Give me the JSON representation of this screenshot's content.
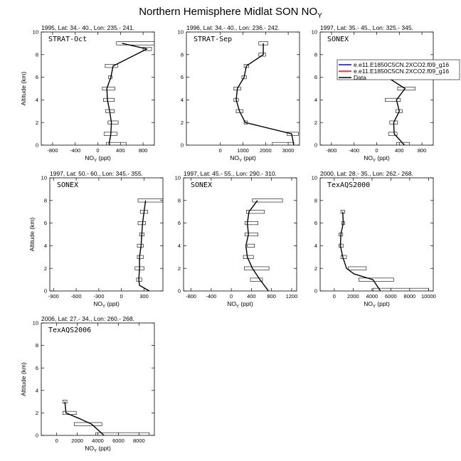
{
  "figure": {
    "title": "Northern Hemisphere Midlat SON NO",
    "title_sub": "Y"
  },
  "legend": [
    {
      "label": "e.e11.E1850C5CN.2XCO2.f09_g16",
      "color": "#0000ff"
    },
    {
      "label": "e.e11.E1850C5CN.2XCO2.f09_g16",
      "color": "#ff0000"
    },
    {
      "label": "Data",
      "color": "#000000"
    }
  ],
  "chart_data": [
    {
      "type": "line",
      "title": "1995, Lat: 34.- 40., Lon: 235.- 241.",
      "tag": "STRAT-Oct",
      "xlabel": "NO",
      "xlabel_sub": "Y",
      "xlabel_unit": " (ppt)",
      "ylabel": "Altitude (km)",
      "xlim": [
        -1000,
        1000
      ],
      "ylim": [
        0,
        10
      ],
      "xticks": [
        -800,
        -400,
        0,
        400,
        800
      ],
      "yticks": [
        0,
        2,
        4,
        6,
        8,
        10
      ],
      "series": [
        {
          "x": [
            430,
            870,
            270,
            230,
            160,
            170,
            210,
            240,
            230,
            200,
            210
          ],
          "y": [
            9,
            8.5,
            7,
            6,
            5,
            4,
            3,
            2,
            1,
            0.1,
            0
          ]
        }
      ],
      "bars": [
        [
          330,
          1000,
          9
        ],
        [
          800,
          950,
          8.5
        ],
        [
          130,
          350,
          7
        ],
        [
          190,
          250,
          6
        ],
        [
          80,
          300,
          5
        ],
        [
          100,
          290,
          4
        ],
        [
          140,
          290,
          3
        ],
        [
          180,
          360,
          2
        ],
        [
          110,
          340,
          1
        ],
        [
          150,
          500,
          0.1
        ]
      ]
    },
    {
      "type": "line",
      "title": "1996, Lat: 34.- 40., Lon: 236.- 242.",
      "tag": "STRAT-Sep",
      "xlabel": "NO",
      "xlabel_sub": "Y",
      "xlabel_unit": " (ppt)",
      "ylabel": "",
      "xlim": [
        -1500,
        3500
      ],
      "ylim": [
        0,
        10
      ],
      "xticks": [
        0,
        1000,
        2000,
        3000
      ],
      "yticks": [
        0,
        2,
        4,
        6,
        8,
        10
      ],
      "series": [
        {
          "x": [
            1900,
            1900,
            1150,
            1050,
            750,
            700,
            850,
            1100,
            3150,
            3250
          ],
          "y": [
            9,
            8,
            7,
            6,
            5,
            4,
            3,
            2,
            1,
            0
          ]
        }
      ],
      "bars": [
        [
          1700,
          2100,
          9
        ],
        [
          1700,
          2000,
          8
        ],
        [
          1050,
          1250,
          7
        ],
        [
          950,
          1150,
          6
        ],
        [
          600,
          900,
          5
        ],
        [
          600,
          800,
          4
        ],
        [
          700,
          1000,
          3
        ],
        [
          1050,
          1200,
          2
        ],
        [
          2950,
          3450,
          1
        ],
        [
          2300,
          3250,
          0.1
        ]
      ]
    },
    {
      "type": "line",
      "title": "1997, Lat: 35.- 45., Lon: 325.- 345.",
      "tag": "SONEX",
      "xlabel": "NO",
      "xlabel_sub": "Y",
      "xlabel_unit": " (ppt)",
      "ylabel": "",
      "xlim": [
        -1000,
        1000
      ],
      "ylim": [
        0,
        10
      ],
      "xticks": [
        -800,
        -400,
        0,
        400,
        800
      ],
      "yticks": [
        0,
        2,
        4,
        6,
        8,
        10
      ],
      "series": [
        {
          "x": [
            1000,
            880,
            190,
            500,
            350,
            400,
            300,
            310,
            490
          ],
          "y": [
            7.4,
            7,
            6,
            5,
            4,
            3,
            2,
            1,
            0
          ]
        }
      ],
      "bars": [
        [
          110,
          280,
          6
        ],
        [
          370,
          680,
          5
        ],
        [
          150,
          420,
          4
        ],
        [
          340,
          450,
          3
        ],
        [
          230,
          370,
          2
        ],
        [
          210,
          360,
          1
        ],
        [
          350,
          580,
          0.1
        ]
      ]
    },
    {
      "type": "line",
      "title": "1997, Lat: 50.- 60., Lon: 345.- 355.",
      "tag": "SONEX",
      "xlabel": "NO",
      "xlabel_sub": "Y",
      "xlabel_unit": " (ppt)",
      "ylabel": "Altitude (km)",
      "xlim": [
        -950,
        550
      ],
      "ylim": [
        0,
        10
      ],
      "xticks": [
        -900,
        -600,
        -300,
        0,
        300
      ],
      "yticks": [
        0,
        2,
        4,
        6,
        8,
        10
      ],
      "series": [
        {
          "x": [
            320,
            300,
            280,
            270,
            260,
            240,
            240,
            230,
            240,
            370
          ],
          "y": [
            8,
            7,
            6,
            5,
            4,
            3,
            2,
            1,
            0.5,
            0
          ]
        }
      ],
      "bars": [
        [
          220,
          550,
          8
        ],
        [
          250,
          350,
          7
        ],
        [
          220,
          320,
          6
        ],
        [
          240,
          300,
          5
        ],
        [
          210,
          290,
          4
        ],
        [
          210,
          290,
          3
        ],
        [
          180,
          300,
          2
        ],
        [
          200,
          270,
          1
        ]
      ]
    },
    {
      "type": "line",
      "title": "1997, Lat: 45.- 55., Lon: 290.- 310.",
      "tag": "SONEX",
      "xlabel": "NO",
      "xlabel_sub": "Y",
      "xlabel_unit": " (ppt)",
      "ylabel": "",
      "xlim": [
        -950,
        1300
      ],
      "ylim": [
        0,
        10
      ],
      "xticks": [
        -800,
        -400,
        0,
        400,
        800,
        1200
      ],
      "yticks": [
        0,
        2,
        4,
        6,
        8,
        10
      ],
      "series": [
        {
          "x": [
            520,
            350,
            320,
            340,
            290,
            320,
            420,
            570,
            740
          ],
          "y": [
            8,
            7,
            6,
            5,
            4,
            3,
            2,
            1,
            0
          ]
        }
      ],
      "bars": [
        [
          420,
          1020,
          8
        ],
        [
          300,
          660,
          7
        ],
        [
          270,
          530,
          6
        ],
        [
          270,
          530,
          5
        ],
        [
          320,
          460,
          4
        ],
        [
          240,
          440,
          3
        ],
        [
          260,
          750,
          2
        ],
        [
          380,
          620,
          1
        ]
      ]
    },
    {
      "type": "line",
      "title": "2000, Lat: 28.- 35., Lon: 262.- 268.",
      "tag": "TexAQS2000",
      "xlabel": "NO",
      "xlabel_sub": "Y",
      "xlabel_unit": " (ppt)",
      "ylabel": "",
      "xlim": [
        -1500,
        10500
      ],
      "ylim": [
        0,
        10
      ],
      "xticks": [
        0,
        2000,
        4000,
        6000,
        8000,
        10000
      ],
      "yticks": [
        0,
        2,
        4,
        6,
        8,
        10
      ],
      "series": [
        {
          "x": [
            900,
            950,
            700,
            650,
            900,
            1300,
            2100,
            4100,
            4900
          ],
          "y": [
            7,
            6,
            5,
            4,
            3,
            2,
            1.5,
            1,
            0
          ]
        }
      ],
      "bars": [
        [
          700,
          1100,
          7
        ],
        [
          800,
          1100,
          6
        ],
        [
          500,
          900,
          5
        ],
        [
          500,
          950,
          4
        ],
        [
          700,
          1300,
          3
        ],
        [
          1500,
          3400,
          2
        ],
        [
          2600,
          6300,
          1
        ],
        [
          4100,
          10000,
          0.1
        ]
      ]
    },
    {
      "type": "line",
      "title": "2006, Lat: 27.- 34., Lon: 260.- 268.",
      "tag": "TexAQS2006",
      "xlabel": "NO",
      "xlabel_sub": "Y",
      "xlabel_unit": " (ppt)",
      "ylabel": "Altitude (km)",
      "xlim": [
        -1500,
        9500
      ],
      "ylim": [
        0,
        10
      ],
      "xticks": [
        0,
        2000,
        4000,
        6000,
        8000
      ],
      "yticks": [
        0,
        2,
        4,
        6,
        8,
        10
      ],
      "series": [
        {
          "x": [
            800,
            900,
            2200,
            3400,
            4600
          ],
          "y": [
            3,
            2,
            1.5,
            1,
            0
          ]
        }
      ],
      "bars": [
        [
          600,
          1000,
          3
        ],
        [
          600,
          1900,
          2
        ],
        [
          1700,
          4400,
          1
        ],
        [
          3800,
          9000,
          0.1
        ]
      ]
    }
  ]
}
